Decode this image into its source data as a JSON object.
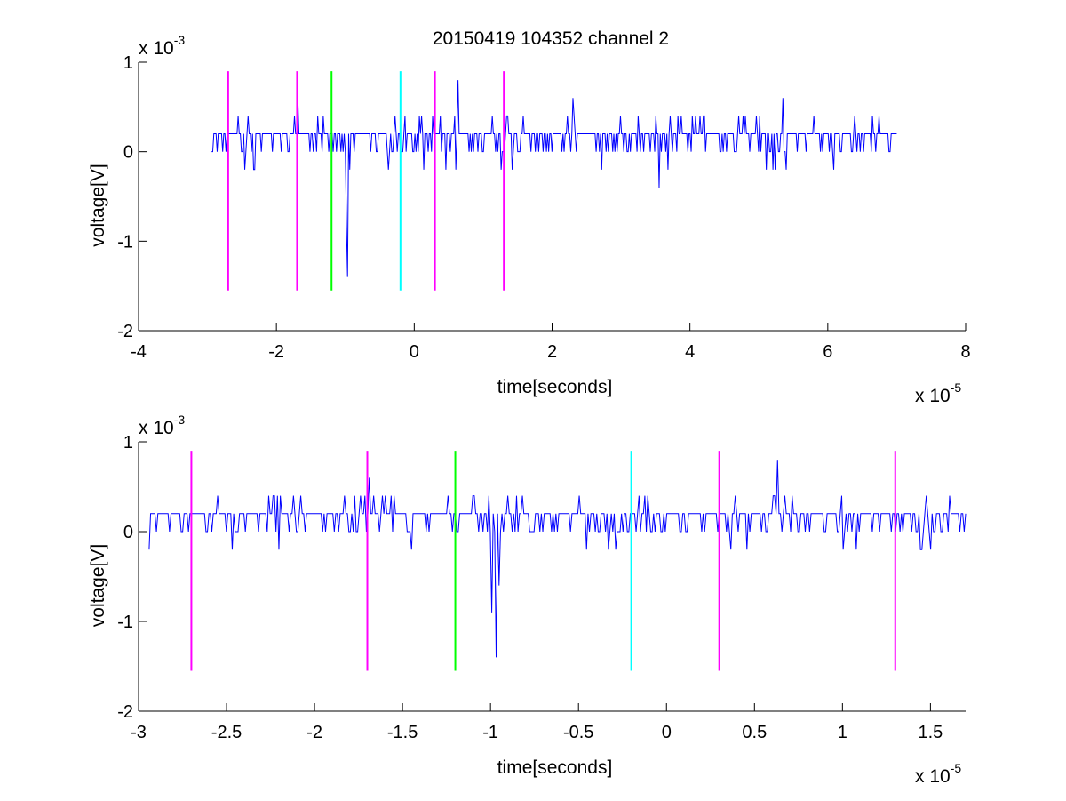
{
  "chart_data": [
    {
      "type": "line",
      "title": "20150419 104352 channel 2",
      "xlabel": "time[seconds]",
      "ylabel": "voltage[V]",
      "x_multiplier_label": "x 10",
      "x_multiplier_exp": "-5",
      "y_multiplier_label": "x 10",
      "y_multiplier_exp": "-3",
      "xlim": [
        -4,
        8
      ],
      "ylim": [
        -2,
        1
      ],
      "x_ticks": [
        -4,
        -2,
        0,
        2,
        4,
        6,
        8
      ],
      "x_tick_labels": [
        "-4",
        "-2",
        "0",
        "2",
        "4",
        "6",
        "8"
      ],
      "y_ticks": [
        -2,
        -1,
        0,
        1
      ],
      "y_tick_labels": [
        "-2",
        "-1",
        "0",
        "1"
      ],
      "grid": false,
      "signal": {
        "color": "#0000ff",
        "x_start": -2.94,
        "x_end": 7.0,
        "baseline": 0.2,
        "noise": [
          0.0,
          0.2,
          0.4,
          -0.2
        ],
        "spikes": [
          {
            "x": -1.69,
            "y": 0.6
          },
          {
            "x": -0.97,
            "y": -1.4
          },
          {
            "x": -0.99,
            "y": -0.8
          },
          {
            "x": 0.63,
            "y": 0.8
          },
          {
            "x": 2.3,
            "y": 0.6
          },
          {
            "x": 3.55,
            "y": -0.4
          },
          {
            "x": 5.35,
            "y": 0.6
          }
        ]
      },
      "markers": [
        {
          "x": -2.7,
          "color": "#ff00ff"
        },
        {
          "x": -1.7,
          "color": "#ff00ff"
        },
        {
          "x": -1.2,
          "color": "#00ff00"
        },
        {
          "x": -0.2,
          "color": "#00ffff"
        },
        {
          "x": 0.3,
          "color": "#ff00ff"
        },
        {
          "x": 1.3,
          "color": "#ff00ff"
        }
      ],
      "marker_range": [
        -1.55,
        0.9
      ]
    },
    {
      "type": "line",
      "xlabel": "time[seconds]",
      "ylabel": "voltage[V]",
      "x_multiplier_label": "x 10",
      "x_multiplier_exp": "-5",
      "y_multiplier_label": "x 10",
      "y_multiplier_exp": "-3",
      "xlim": [
        -3.0,
        1.7
      ],
      "ylim": [
        -2,
        1
      ],
      "x_ticks": [
        -3,
        -2.5,
        -2,
        -1.5,
        -1,
        -0.5,
        0,
        0.5,
        1,
        1.5
      ],
      "x_tick_labels": [
        "-3",
        "-2.5",
        "-2",
        "-1.5",
        "-1",
        "-0.5",
        "0",
        "0.5",
        "1",
        "1.5"
      ],
      "y_ticks": [
        -2,
        -1,
        0,
        1
      ],
      "y_tick_labels": [
        "-2",
        "-1",
        "0",
        "1"
      ],
      "grid": false,
      "signal": {
        "color": "#0000ff",
        "x_start": -2.94,
        "x_end": 1.7,
        "baseline": 0.2,
        "noise": [
          0.0,
          0.2,
          0.4,
          -0.2
        ],
        "spikes": [
          {
            "x": -1.69,
            "y": 0.6
          },
          {
            "x": -0.99,
            "y": -0.9
          },
          {
            "x": -0.97,
            "y": -1.4
          },
          {
            "x": -0.95,
            "y": -0.6
          },
          {
            "x": 0.63,
            "y": 0.8
          }
        ]
      },
      "markers": [
        {
          "x": -2.7,
          "color": "#ff00ff"
        },
        {
          "x": -1.7,
          "color": "#ff00ff"
        },
        {
          "x": -1.2,
          "color": "#00ff00"
        },
        {
          "x": -0.2,
          "color": "#00ffff"
        },
        {
          "x": 0.3,
          "color": "#ff00ff"
        },
        {
          "x": 1.3,
          "color": "#ff00ff"
        }
      ],
      "marker_range": [
        -1.55,
        0.9
      ]
    }
  ]
}
